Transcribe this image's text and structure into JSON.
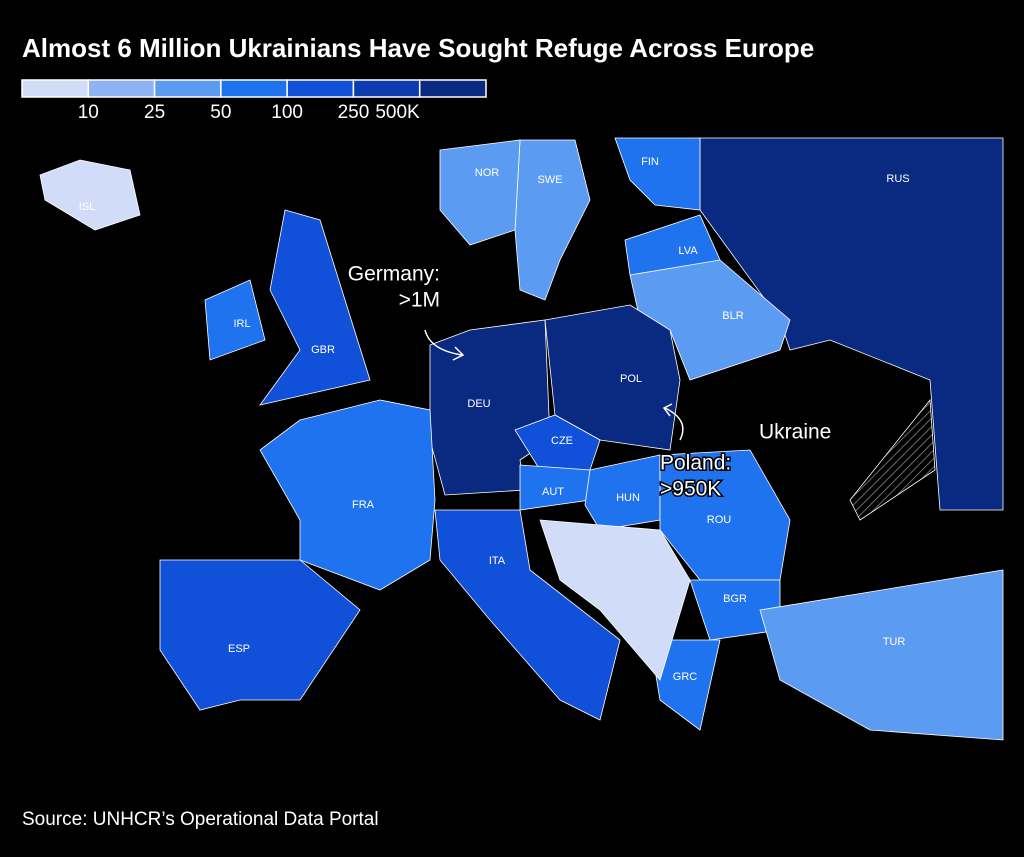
{
  "header": {
    "title": "Almost 6 Million Ukrainians Have Sought Refuge Across Europe"
  },
  "legend": {
    "colors": [
      "#d0dcf8",
      "#8db3f5",
      "#5c9bf2",
      "#1f73ef",
      "#1150d8",
      "#0d3bb0",
      "#0a2a82"
    ],
    "labels": [
      "10",
      "25",
      "50",
      "100",
      "250",
      "500K"
    ]
  },
  "countries": [
    {
      "label": "RUS",
      "class": 6
    },
    {
      "label": "FIN",
      "class": 3
    },
    {
      "label": "SWE",
      "class": 2
    },
    {
      "label": "NOR",
      "class": 2
    },
    {
      "label": "ISL",
      "class": 0
    },
    {
      "label": "LVA",
      "class": 3
    },
    {
      "label": "BLR",
      "class": 2
    },
    {
      "label": "IRL",
      "class": 3
    },
    {
      "label": "GBR",
      "class": 4
    },
    {
      "label": "DEU",
      "class": 6
    },
    {
      "label": "POL",
      "class": 6
    },
    {
      "label": "CZE",
      "class": 4
    },
    {
      "label": "FRA",
      "class": 3
    },
    {
      "label": "AUT",
      "class": 3
    },
    {
      "label": "HUN",
      "class": 3
    },
    {
      "label": "ROU",
      "class": 3
    },
    {
      "label": "ITA",
      "class": 4
    },
    {
      "label": "BGR",
      "class": 3
    },
    {
      "label": "ESP",
      "class": 4
    },
    {
      "label": "TUR",
      "class": 2
    },
    {
      "label": "GRC",
      "class": 3
    }
  ],
  "ukraine_label": "Ukraine",
  "annotations": [
    {
      "lines": [
        "Germany:",
        ">1M"
      ]
    },
    {
      "lines": [
        "Poland:",
        ">950K"
      ]
    }
  ],
  "source": "Source: UNHCR’s Operational Data Portal"
}
